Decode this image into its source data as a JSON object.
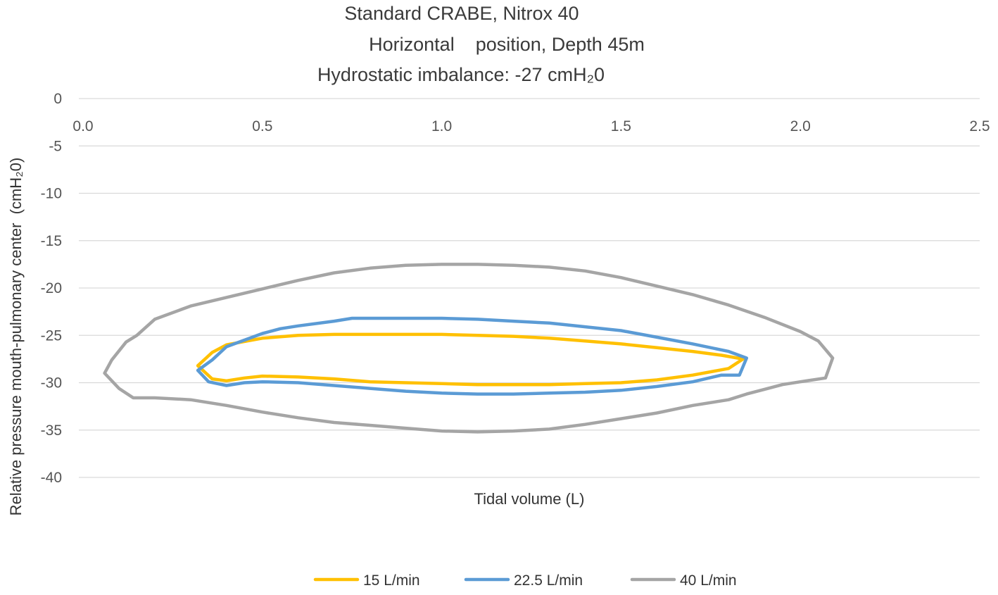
{
  "chart_data": {
    "type": "line",
    "title_lines": [
      "Standard CRABE, Nitrox 40",
      "Horizontal    position, Depth 45m",
      "Hydrostatic imbalance: -27 cmH₂0"
    ],
    "xlabel": "Tidal volume (L)",
    "ylabel": "Relative pressure mouth-pulmonary center  (cmH₂0)",
    "xlim": [
      0,
      2.5
    ],
    "ylim": [
      -40,
      0
    ],
    "x_ticks": [
      "0.0",
      "0.5",
      "1.0",
      "1.5",
      "2.0",
      "2.5"
    ],
    "y_ticks": [
      "0",
      "-5",
      "-10",
      "-15",
      "-20",
      "-25",
      "-30",
      "-35",
      "-40"
    ],
    "grid": true,
    "legend_position": "bottom",
    "series": [
      {
        "name": "15 L/min",
        "color": "#FFC000",
        "points": [
          [
            0.32,
            -28.2
          ],
          [
            0.36,
            -26.8
          ],
          [
            0.4,
            -26.0
          ],
          [
            0.5,
            -25.3
          ],
          [
            0.6,
            -25.0
          ],
          [
            0.7,
            -24.9
          ],
          [
            0.8,
            -24.9
          ],
          [
            0.9,
            -24.9
          ],
          [
            1.0,
            -24.9
          ],
          [
            1.1,
            -25.0
          ],
          [
            1.2,
            -25.1
          ],
          [
            1.3,
            -25.3
          ],
          [
            1.4,
            -25.6
          ],
          [
            1.5,
            -25.9
          ],
          [
            1.6,
            -26.3
          ],
          [
            1.7,
            -26.7
          ],
          [
            1.78,
            -27.1
          ],
          [
            1.84,
            -27.5
          ],
          [
            1.8,
            -28.5
          ],
          [
            1.7,
            -29.2
          ],
          [
            1.6,
            -29.7
          ],
          [
            1.5,
            -30.0
          ],
          [
            1.4,
            -30.1
          ],
          [
            1.3,
            -30.2
          ],
          [
            1.2,
            -30.2
          ],
          [
            1.1,
            -30.2
          ],
          [
            1.0,
            -30.1
          ],
          [
            0.9,
            -30.0
          ],
          [
            0.8,
            -29.9
          ],
          [
            0.7,
            -29.6
          ],
          [
            0.6,
            -29.4
          ],
          [
            0.5,
            -29.3
          ],
          [
            0.45,
            -29.5
          ],
          [
            0.4,
            -29.8
          ],
          [
            0.36,
            -29.6
          ],
          [
            0.32,
            -28.2
          ]
        ]
      },
      {
        "name": "22.5 L/min",
        "color": "#5B9BD5",
        "points": [
          [
            0.32,
            -28.7
          ],
          [
            0.36,
            -27.6
          ],
          [
            0.4,
            -26.2
          ],
          [
            0.5,
            -24.8
          ],
          [
            0.55,
            -24.3
          ],
          [
            0.6,
            -24.0
          ],
          [
            0.7,
            -23.5
          ],
          [
            0.75,
            -23.2
          ],
          [
            0.8,
            -23.2
          ],
          [
            0.9,
            -23.2
          ],
          [
            1.0,
            -23.2
          ],
          [
            1.1,
            -23.3
          ],
          [
            1.2,
            -23.5
          ],
          [
            1.3,
            -23.7
          ],
          [
            1.4,
            -24.1
          ],
          [
            1.5,
            -24.5
          ],
          [
            1.6,
            -25.2
          ],
          [
            1.7,
            -25.9
          ],
          [
            1.8,
            -26.7
          ],
          [
            1.85,
            -27.4
          ],
          [
            1.83,
            -29.2
          ],
          [
            1.78,
            -29.2
          ],
          [
            1.7,
            -29.9
          ],
          [
            1.6,
            -30.4
          ],
          [
            1.5,
            -30.8
          ],
          [
            1.4,
            -31.0
          ],
          [
            1.3,
            -31.1
          ],
          [
            1.2,
            -31.2
          ],
          [
            1.1,
            -31.2
          ],
          [
            1.0,
            -31.1
          ],
          [
            0.9,
            -30.9
          ],
          [
            0.8,
            -30.6
          ],
          [
            0.7,
            -30.3
          ],
          [
            0.6,
            -30.0
          ],
          [
            0.5,
            -29.9
          ],
          [
            0.45,
            -30.0
          ],
          [
            0.4,
            -30.3
          ],
          [
            0.35,
            -29.9
          ],
          [
            0.32,
            -28.7
          ]
        ]
      },
      {
        "name": "40 L/min",
        "color": "#A5A5A5",
        "points": [
          [
            0.06,
            -29.0
          ],
          [
            0.08,
            -27.6
          ],
          [
            0.12,
            -25.7
          ],
          [
            0.15,
            -25.0
          ],
          [
            0.2,
            -23.3
          ],
          [
            0.3,
            -21.9
          ],
          [
            0.4,
            -21.0
          ],
          [
            0.5,
            -20.1
          ],
          [
            0.6,
            -19.2
          ],
          [
            0.7,
            -18.4
          ],
          [
            0.8,
            -17.9
          ],
          [
            0.9,
            -17.6
          ],
          [
            1.0,
            -17.5
          ],
          [
            1.1,
            -17.5
          ],
          [
            1.2,
            -17.6
          ],
          [
            1.3,
            -17.8
          ],
          [
            1.4,
            -18.2
          ],
          [
            1.5,
            -18.9
          ],
          [
            1.6,
            -19.8
          ],
          [
            1.7,
            -20.7
          ],
          [
            1.8,
            -21.8
          ],
          [
            1.9,
            -23.1
          ],
          [
            2.0,
            -24.6
          ],
          [
            2.05,
            -25.6
          ],
          [
            2.09,
            -27.4
          ],
          [
            2.07,
            -29.5
          ],
          [
            2.0,
            -29.9
          ],
          [
            1.95,
            -30.2
          ],
          [
            1.9,
            -30.7
          ],
          [
            1.85,
            -31.2
          ],
          [
            1.8,
            -31.8
          ],
          [
            1.7,
            -32.4
          ],
          [
            1.6,
            -33.2
          ],
          [
            1.5,
            -33.8
          ],
          [
            1.4,
            -34.4
          ],
          [
            1.3,
            -34.9
          ],
          [
            1.2,
            -35.1
          ],
          [
            1.1,
            -35.2
          ],
          [
            1.0,
            -35.1
          ],
          [
            0.9,
            -34.8
          ],
          [
            0.8,
            -34.5
          ],
          [
            0.7,
            -34.2
          ],
          [
            0.6,
            -33.7
          ],
          [
            0.5,
            -33.1
          ],
          [
            0.4,
            -32.4
          ],
          [
            0.3,
            -31.8
          ],
          [
            0.2,
            -31.6
          ],
          [
            0.14,
            -31.6
          ],
          [
            0.1,
            -30.6
          ],
          [
            0.06,
            -29.0
          ]
        ]
      }
    ]
  }
}
